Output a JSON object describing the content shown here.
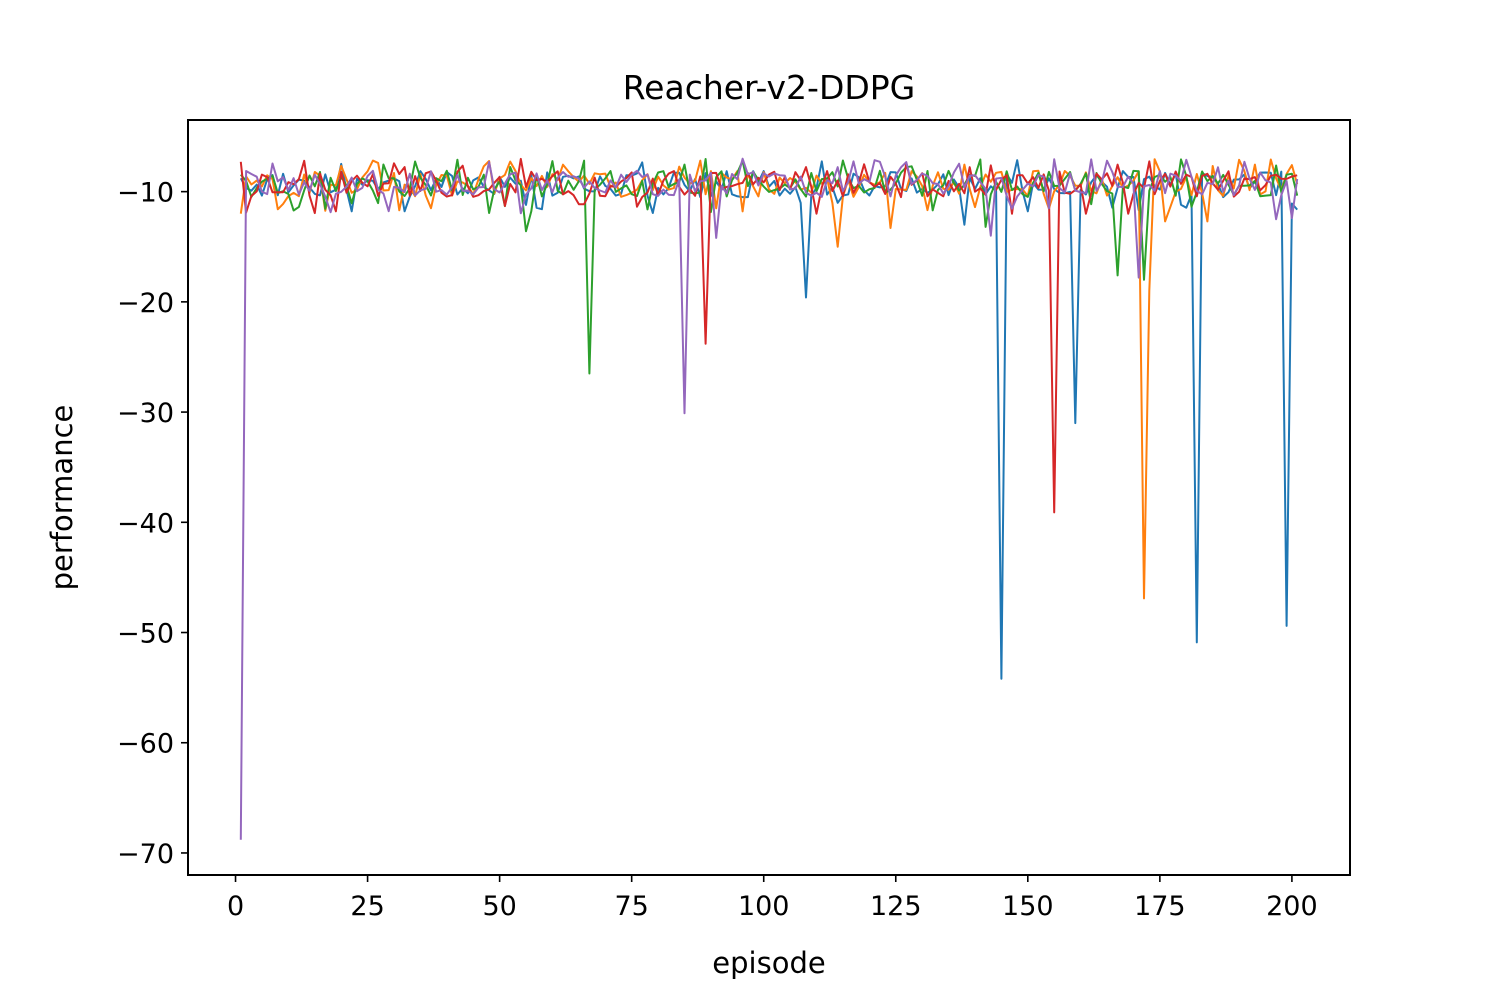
{
  "chart_data": {
    "type": "line",
    "title": "Reacher-v2-DDPG",
    "xlabel": "episode",
    "ylabel": "performance",
    "xlim": [
      -9,
      211
    ],
    "ylim": [
      -72,
      -3.5
    ],
    "xticks": [
      0,
      25,
      50,
      75,
      100,
      125,
      150,
      175,
      200
    ],
    "yticks": [
      -10,
      -20,
      -30,
      -40,
      -50,
      -60,
      -70
    ],
    "ytick_labels": [
      "−10",
      "−20",
      "−30",
      "−40",
      "−50",
      "−60",
      "−70"
    ],
    "grid": false,
    "legend": "none",
    "x": "episodes 1 to 201, step 1",
    "series": [
      {
        "color": "#1f77b4",
        "spikes": [
          [
            145,
            -54.2
          ],
          [
            159,
            -31.0
          ],
          [
            182,
            -50.9
          ],
          [
            199,
            -49.4
          ],
          [
            108,
            -19.6
          ],
          [
            138,
            -13.0
          ],
          [
            55,
            -11.2
          ]
        ]
      },
      {
        "color": "#ff7f0e",
        "spikes": [
          [
            1,
            -12.0
          ],
          [
            172,
            -46.9
          ],
          [
            173,
            -19.0
          ],
          [
            114,
            -15.0
          ],
          [
            124,
            -13.3
          ],
          [
            176,
            -12.7
          ],
          [
            184,
            -12.7
          ],
          [
            8,
            -11.6
          ]
        ]
      },
      {
        "color": "#2ca02c",
        "spikes": [
          [
            67,
            -26.5
          ],
          [
            55,
            -13.6
          ],
          [
            167,
            -17.6
          ],
          [
            172,
            -18.0
          ],
          [
            142,
            -13.2
          ]
        ]
      },
      {
        "color": "#d62728",
        "spikes": [
          [
            89,
            -23.8
          ],
          [
            155,
            -39.1
          ],
          [
            2,
            -11.9
          ],
          [
            147,
            -12.0
          ],
          [
            161,
            -12.0
          ],
          [
            169,
            -12.0
          ],
          [
            110,
            -12.0
          ]
        ]
      },
      {
        "color": "#9467bd",
        "spikes": [
          [
            1,
            -68.8
          ],
          [
            85,
            -30.1
          ],
          [
            91,
            -14.2
          ],
          [
            143,
            -14.0
          ],
          [
            171,
            -17.8
          ],
          [
            197,
            -12.5
          ],
          [
            200,
            -12.4
          ]
        ]
      }
    ]
  }
}
